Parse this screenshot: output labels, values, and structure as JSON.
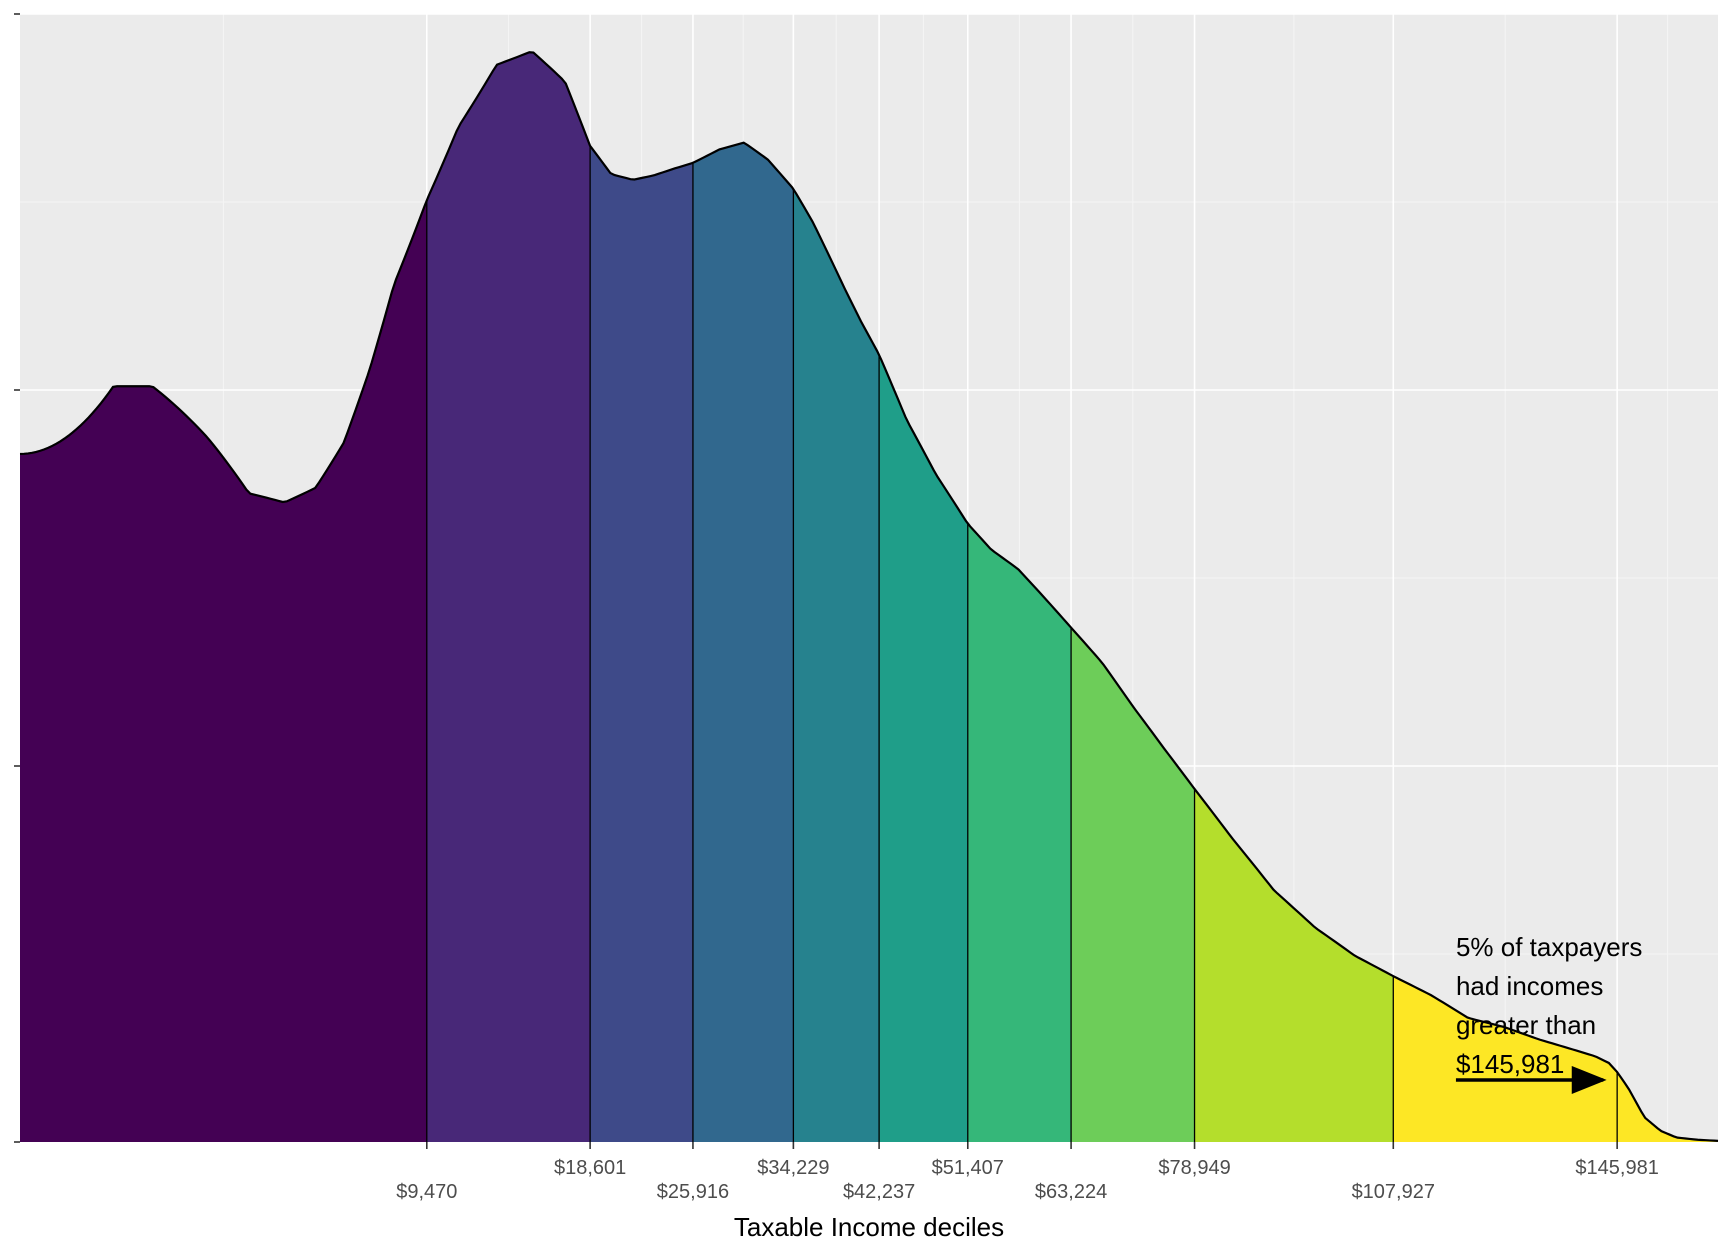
{
  "chart_data": {
    "type": "area",
    "title": "",
    "xlabel": "Taxable Income deciles",
    "ylabel": "",
    "grid": true,
    "legend": "none",
    "x_scale": "sqrt",
    "xlim": [
      0,
      165000
    ],
    "ylim": [
      0,
      1.0
    ],
    "quantile_breaks": [
      9470,
      18601,
      25916,
      34229,
      42237,
      51407,
      63224,
      78949,
      107927,
      145981
    ],
    "quantile_labels": [
      "$9,470",
      "$18,601",
      "$25,916",
      "$34,229",
      "$42,237",
      "$51,407",
      "$63,224",
      "$78,949",
      "$107,927",
      "$145,981"
    ],
    "fill_colors": [
      "#440154",
      "#482878",
      "#3E4A89",
      "#31688E",
      "#26828E",
      "#1F9E89",
      "#35B779",
      "#6DCD59",
      "#B4DE2C",
      "#FDE725"
    ],
    "density_curve": {
      "x": [
        0,
        500,
        1000,
        2000,
        3000,
        4000,
        5000,
        6000,
        7000,
        8000,
        9470,
        11000,
        13000,
        15000,
        17000,
        18601,
        20000,
        21500,
        23000,
        24500,
        25916,
        28000,
        30000,
        32000,
        34229,
        36000,
        37500,
        39000,
        40500,
        42237,
        45000,
        48000,
        51407,
        54000,
        57000,
        60000,
        63224,
        67000,
        71000,
        75000,
        78949,
        84000,
        90000,
        96000,
        102000,
        107927,
        114000,
        120000,
        126000,
        132000,
        138000,
        142000,
        144500,
        145981,
        148000,
        151000,
        154000,
        157000,
        161000,
        165000
      ],
      "y": [
        0.61,
        0.67,
        0.67,
        0.625,
        0.575,
        0.567,
        0.58,
        0.62,
        0.685,
        0.76,
        0.835,
        0.9,
        0.955,
        0.967,
        0.94,
        0.883,
        0.858,
        0.853,
        0.857,
        0.863,
        0.868,
        0.88,
        0.886,
        0.871,
        0.845,
        0.815,
        0.785,
        0.755,
        0.727,
        0.698,
        0.64,
        0.592,
        0.548,
        0.525,
        0.508,
        0.483,
        0.456,
        0.425,
        0.385,
        0.348,
        0.313,
        0.27,
        0.223,
        0.19,
        0.165,
        0.147,
        0.13,
        0.11,
        0.102,
        0.091,
        0.082,
        0.076,
        0.07,
        0.062,
        0.048,
        0.022,
        0.01,
        0.004,
        0.002,
        0.001
      ]
    },
    "annotation": {
      "lines": [
        "5% of taxpayers",
        "had incomes",
        "greater than",
        "$145,981"
      ],
      "arrow_from": [
        118000,
        0.055
      ],
      "arrow_to": [
        146000,
        0.055
      ]
    }
  }
}
